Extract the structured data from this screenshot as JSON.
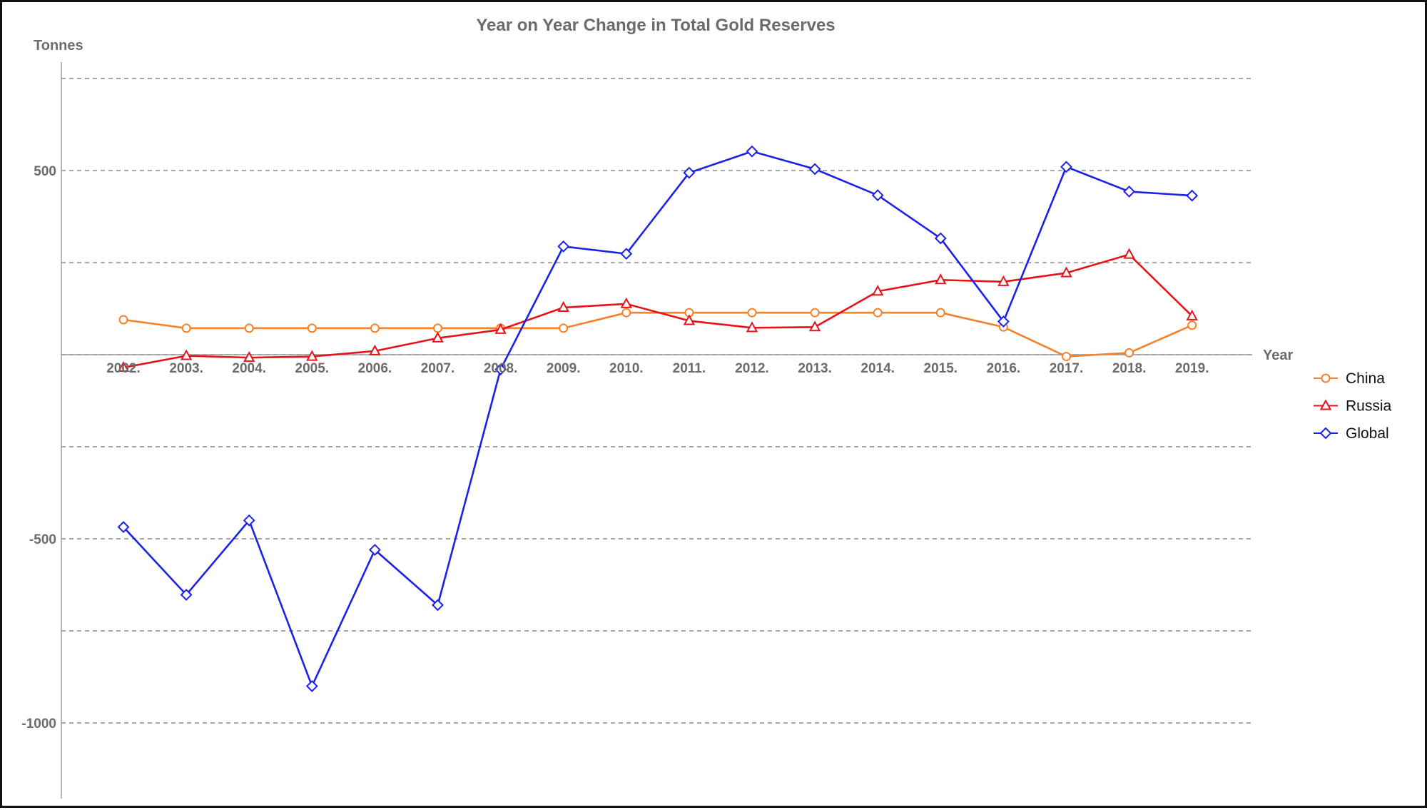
{
  "chart_data": {
    "type": "line",
    "title": "Year on Year Change in Total Gold Reserves",
    "xlabel": "Year",
    "ylabel": "Tonnes",
    "categories": [
      "2002.",
      "2003.",
      "2004.",
      "2005.",
      "2006.",
      "2007.",
      "2008.",
      "2009.",
      "2010.",
      "2011.",
      "2012.",
      "2013.",
      "2014.",
      "2015.",
      "2016.",
      "2017.",
      "2018.",
      "2019."
    ],
    "y_ticks": [
      {
        "value": 500,
        "label": "500"
      },
      {
        "value": -500,
        "label": "-500"
      },
      {
        "value": -1000,
        "label": "-1000"
      }
    ],
    "gridlines": [
      750,
      500,
      250,
      0,
      -250,
      -500,
      -750,
      -1000
    ],
    "ylim": [
      -1200,
      790
    ],
    "grid": true,
    "legend_position": "right",
    "series": [
      {
        "name": "China",
        "color": "#f5822a",
        "marker": "circle",
        "values": [
          95,
          72,
          72,
          72,
          72,
          72,
          72,
          72,
          114,
          114,
          114,
          114,
          114,
          114,
          75,
          -5,
          5,
          80
        ]
      },
      {
        "name": "Russia",
        "color": "#e8121b",
        "marker": "triangle",
        "values": [
          -35,
          -3,
          -8,
          -5,
          10,
          45,
          68,
          128,
          138,
          92,
          73,
          75,
          172,
          203,
          198,
          222,
          272,
          105
        ]
      },
      {
        "name": "Global",
        "color": "#1a22e8",
        "marker": "diamond",
        "values": [
          -468,
          -652,
          -450,
          -900,
          -530,
          -680,
          -40,
          294,
          274,
          494,
          552,
          504,
          433,
          316,
          90,
          510,
          443,
          432
        ]
      }
    ]
  }
}
